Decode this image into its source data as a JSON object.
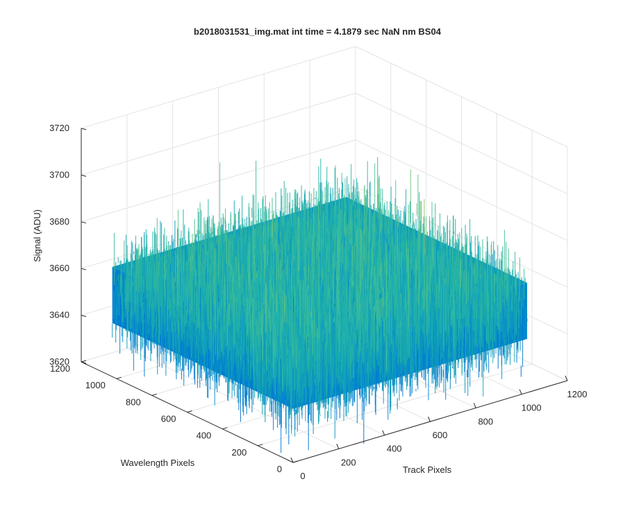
{
  "chart_data": {
    "type": "surface",
    "title": "b2018031531_img.mat int time = 4.1879 sec  NaN nm BS04",
    "xlabel": "Track Pixels",
    "ylabel": "Wavelength Pixels",
    "zlabel": "Signal (ADU)",
    "xlim": [
      0,
      1200
    ],
    "ylim": [
      0,
      1200
    ],
    "zlim": [
      3620,
      3720
    ],
    "xticks": [
      "0",
      "200",
      "400",
      "600",
      "800",
      "1000",
      "1200"
    ],
    "yticks": [
      "0",
      "200",
      "400",
      "600",
      "800",
      "1000",
      "1200"
    ],
    "zticks": [
      "3620",
      "3640",
      "3660",
      "3680",
      "3700",
      "3720"
    ],
    "grid": true,
    "colormap": "parula",
    "surface_extent": {
      "x": [
        0,
        1024
      ],
      "y": [
        0,
        1024
      ]
    },
    "signal_mean": 3655,
    "signal_range": [
      3610,
      3700
    ],
    "colors": {
      "low": "#0072BD",
      "mid": "#20B5A8",
      "high": "#D9C84A",
      "grid": "#E3E3E3",
      "axis": "#262626"
    }
  }
}
